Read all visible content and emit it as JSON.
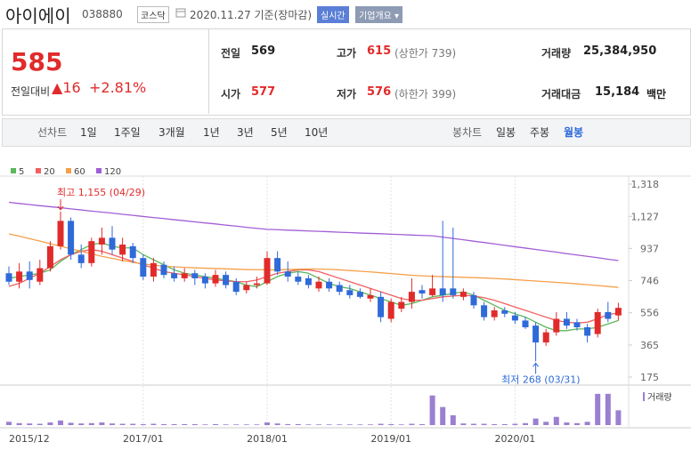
{
  "header": {
    "name": "아이에이",
    "code": "038880",
    "market": "코스닥",
    "date": "2020.11.27 기준(장마감)",
    "realtime": "실시간",
    "overview": "기업개요"
  },
  "price": {
    "current": "585",
    "change_label": "전일대비",
    "change": "16",
    "change_pct": "+2.81%"
  },
  "stats": [
    {
      "label": "전일",
      "value": "569"
    },
    {
      "label": "고가",
      "value": "615",
      "note": "(상한가 739)"
    },
    {
      "label": "거래량",
      "value": "25,384,950"
    },
    {
      "label": "시가",
      "value": "577"
    },
    {
      "label": "저가",
      "value": "576",
      "note": "(하한가 399)"
    },
    {
      "label": "거래대금",
      "value": "15,184",
      "unit": "백만"
    }
  ],
  "tabs": {
    "line_label": "선차트",
    "line": [
      "1일",
      "1주일",
      "3개월",
      "1년",
      "3년",
      "5년",
      "10년"
    ],
    "candle_label": "봉차트",
    "candle": [
      "일봉",
      "주봉",
      "월봉"
    ],
    "selected": 2
  },
  "chart_data": {
    "type": "candlestick",
    "categories": [
      "2015/12",
      null,
      null,
      null,
      null,
      null,
      null,
      null,
      null,
      null,
      null,
      null,
      null,
      "2017/01",
      null,
      null,
      null,
      null,
      null,
      null,
      null,
      null,
      null,
      null,
      null,
      "2018/01",
      null,
      null,
      null,
      null,
      null,
      null,
      null,
      null,
      null,
      null,
      null,
      "2019/01",
      null,
      null,
      null,
      null,
      null,
      null,
      null,
      null,
      null,
      null,
      null,
      "2020/01",
      null,
      null,
      null,
      null,
      null,
      null,
      null,
      null,
      null,
      null
    ],
    "open": [
      790,
      740,
      800,
      740,
      820,
      950,
      1100,
      900,
      850,
      960,
      1000,
      900,
      950,
      880,
      770,
      840,
      790,
      760,
      790,
      770,
      730,
      780,
      740,
      690,
      720,
      730,
      880,
      800,
      770,
      760,
      700,
      740,
      720,
      690,
      680,
      640,
      650,
      520,
      580,
      620,
      690,
      660,
      700,
      700,
      650,
      660,
      600,
      530,
      570,
      540,
      510,
      480,
      380,
      440,
      520,
      500,
      470,
      430,
      560,
      540
    ],
    "high": [
      830,
      850,
      860,
      870,
      980,
      1155,
      1120,
      960,
      1000,
      1060,
      1070,
      1000,
      970,
      900,
      880,
      860,
      830,
      820,
      810,
      790,
      810,
      800,
      760,
      740,
      770,
      920,
      920,
      860,
      800,
      780,
      770,
      760,
      740,
      720,
      700,
      700,
      680,
      640,
      650,
      760,
      720,
      780,
      1100,
      1060,
      700,
      680,
      620,
      590,
      590,
      560,
      530,
      500,
      460,
      560,
      560,
      520,
      490,
      580,
      620,
      615
    ],
    "low": [
      720,
      700,
      700,
      720,
      800,
      930,
      870,
      820,
      830,
      900,
      900,
      860,
      850,
      750,
      740,
      760,
      740,
      740,
      720,
      700,
      710,
      700,
      660,
      670,
      700,
      720,
      780,
      740,
      720,
      700,
      680,
      680,
      660,
      640,
      640,
      620,
      500,
      500,
      560,
      580,
      640,
      650,
      620,
      640,
      630,
      580,
      510,
      510,
      530,
      490,
      460,
      268,
      360,
      420,
      460,
      450,
      380,
      410,
      500,
      510
    ],
    "close": [
      740,
      800,
      750,
      820,
      950,
      1100,
      900,
      850,
      980,
      1000,
      930,
      960,
      880,
      770,
      850,
      780,
      760,
      790,
      760,
      730,
      780,
      720,
      680,
      720,
      730,
      880,
      800,
      770,
      740,
      720,
      740,
      700,
      680,
      660,
      650,
      660,
      530,
      620,
      620,
      680,
      670,
      700,
      660,
      660,
      680,
      600,
      530,
      570,
      550,
      510,
      470,
      380,
      440,
      520,
      480,
      470,
      420,
      560,
      520,
      585
    ],
    "up_color": "#e12b2b",
    "down_color": "#2f6ad9",
    "series": [
      {
        "name": "5",
        "color": "#5cb85c",
        "values": [
          760,
          770,
          780,
          790,
          810,
          860,
          900,
          930,
          960,
          970,
          950,
          940,
          940,
          900,
          870,
          840,
          810,
          790,
          780,
          770,
          760,
          750,
          740,
          720,
          710,
          740,
          770,
          790,
          800,
          790,
          760,
          730,
          710,
          700,
          680,
          660,
          640,
          620,
          600,
          610,
          630,
          650,
          660,
          670,
          680,
          660,
          630,
          600,
          570,
          550,
          530,
          500,
          470,
          450,
          450,
          460,
          460,
          470,
          490,
          510
        ]
      },
      {
        "name": "20",
        "color": "#f06060",
        "values": [
          712,
          730,
          760,
          790,
          830,
          870,
          900,
          920,
          930,
          920,
          900,
          880,
          860,
          840,
          820,
          800,
          790,
          780,
          770,
          760,
          750,
          745,
          740,
          740,
          750,
          770,
          790,
          800,
          810,
          810,
          800,
          780,
          760,
          740,
          720,
          700,
          680,
          660,
          640,
          630,
          630,
          640,
          650,
          655,
          660,
          655,
          645,
          630,
          610,
          590,
          570,
          550,
          530,
          510,
          500,
          495,
          500,
          520,
          545,
          555
        ]
      },
      {
        "name": "60",
        "color": "#f5a04a",
        "values": [
          1023,
          1010,
          995,
          980,
          965,
          950,
          935,
          920,
          905,
          890,
          878,
          866,
          855,
          845,
          838,
          832,
          828,
          825,
          822,
          820,
          818,
          816,
          814,
          812,
          811,
          810,
          810,
          812,
          814,
          815,
          815,
          813,
          810,
          806,
          802,
          798,
          793,
          788,
          783,
          778,
          775,
          772,
          770,
          768,
          766,
          764,
          762,
          759,
          756,
          752,
          748,
          744,
          740,
          736,
          732,
          727,
          722,
          717,
          712,
          706
        ]
      },
      {
        "name": "120",
        "color": "#a25ed6",
        "values": [
          1210,
          1203,
          1197,
          1190,
          1184,
          1178,
          1171,
          1165,
          1158,
          1152,
          1146,
          1139,
          1133,
          1126,
          1120,
          1114,
          1107,
          1101,
          1094,
          1088,
          1082,
          1075,
          1069,
          1062,
          1056,
          1050,
          1048,
          1045,
          1043,
          1040,
          1038,
          1036,
          1033,
          1031,
          1028,
          1026,
          1024,
          1021,
          1019,
          1016,
          1014,
          1012,
          1004,
          996,
          988,
          980,
          972,
          964,
          955,
          947,
          939,
          931,
          923,
          915,
          906,
          898,
          890,
          882,
          873,
          865
        ]
      }
    ],
    "ylim": [
      175,
      1318
    ],
    "yticks": [
      {
        "value": 1318,
        "label": "1,318"
      },
      {
        "value": 1127,
        "label": "1,127"
      },
      937,
      746,
      556,
      365,
      175
    ],
    "annotations": {
      "max": "최고 1,155 (04/29)",
      "min": "최저 268 (03/31)"
    },
    "volume": {
      "name": "거래량",
      "color": "#9b7fd0",
      "ylim": [
        0,
        100
      ],
      "values": [
        10,
        6,
        5,
        4,
        8,
        14,
        7,
        5,
        6,
        8,
        5,
        4,
        4,
        3,
        4,
        3,
        3,
        3,
        3,
        2,
        3,
        2,
        2,
        2,
        2,
        8,
        5,
        3,
        3,
        2,
        2,
        2,
        2,
        2,
        2,
        2,
        4,
        3,
        2,
        4,
        3,
        90,
        55,
        30,
        5,
        4,
        4,
        3,
        3,
        4,
        6,
        20,
        10,
        25,
        8,
        6,
        10,
        95,
        95,
        45
      ]
    }
  }
}
